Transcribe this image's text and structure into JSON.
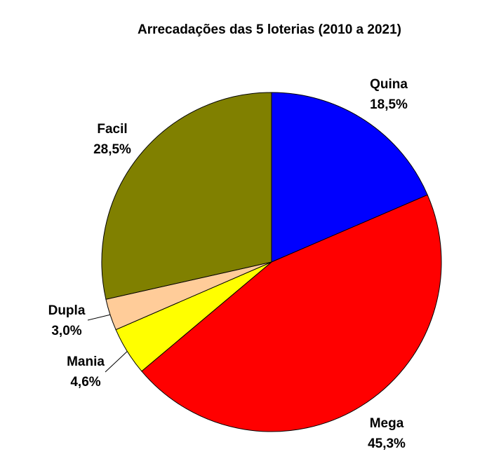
{
  "chart_data": {
    "type": "pie",
    "title": "Arrecadações das 5 loterias (2010 a 2021)",
    "start_angle_deg": 90,
    "direction": "clockwise",
    "slices": [
      {
        "label": "Quina",
        "percent_label": "18,5%",
        "value": 18.5,
        "color": "#0000ff"
      },
      {
        "label": "Mega",
        "percent_label": "45,3%",
        "value": 45.3,
        "color": "#ff0000"
      },
      {
        "label": "Mania",
        "percent_label": "4,6%",
        "value": 4.6,
        "color": "#ffff00"
      },
      {
        "label": "Dupla",
        "percent_label": "3,0%",
        "value": 3.0,
        "color": "#ffcc99"
      },
      {
        "label": "Facil",
        "percent_label": "28,5%",
        "value": 28.5,
        "color": "#808000"
      }
    ]
  }
}
